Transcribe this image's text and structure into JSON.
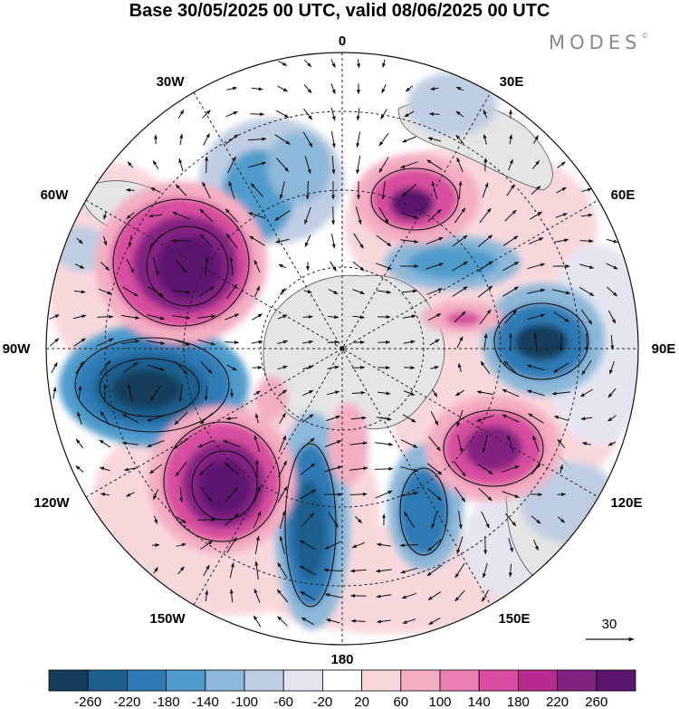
{
  "title": "Base 30/05/2025 00 UTC, valid 08/06/2025 00 UTC",
  "brand": "MODES",
  "brand_mark": "©",
  "longitude_labels": {
    "lon_0": "0",
    "lon_30e": "30E",
    "lon_60e": "60E",
    "lon_90e": "90E",
    "lon_120e": "120E",
    "lon_150e": "150E",
    "lon_180": "180",
    "lon_150w": "150W",
    "lon_120w": "120W",
    "lon_90w": "90W",
    "lon_60w": "60W",
    "lon_30w": "30W"
  },
  "reference_vector": {
    "label": "30"
  },
  "colorbar": {
    "tick_labels": [
      "-260",
      "-220",
      "-180",
      "-140",
      "-100",
      "-60",
      "-20",
      "20",
      "60",
      "100",
      "140",
      "180",
      "220",
      "260"
    ],
    "colors": [
      "#163c5b",
      "#1d5f8e",
      "#2e7ab5",
      "#4f9ccc",
      "#8cb8d9",
      "#bfcde3",
      "#e4e5f1",
      "#ffffff",
      "#f9d8dc",
      "#f4aec2",
      "#ea7fb1",
      "#d84d9f",
      "#b82a8f",
      "#842282",
      "#5b1670"
    ]
  },
  "legend_colors": {
    "land": "#e5e5e5",
    "coast": "#555555"
  }
}
